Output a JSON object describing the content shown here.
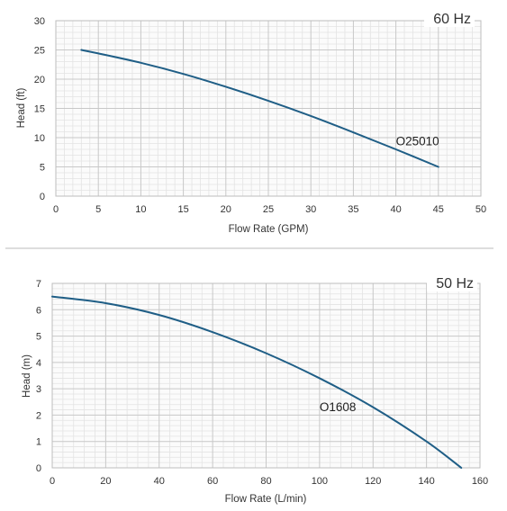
{
  "colors": {
    "curve": "#1f5e86",
    "grid_major": "#c8c8c8",
    "grid_minor": "#e3e3e3",
    "axis": "#bdbdbd",
    "panel_bg": "#fbfbfb",
    "divider": "#bbbbbb"
  },
  "chart_data": [
    {
      "type": "line",
      "title": "60 Hz",
      "xlabel": "Flow Rate (GPM)",
      "ylabel": "Head (ft)",
      "xlim": [
        0,
        50
      ],
      "ylim": [
        0,
        30
      ],
      "xticks": [
        0,
        5,
        10,
        15,
        20,
        25,
        30,
        35,
        40,
        45,
        50
      ],
      "yticks": [
        0,
        5,
        10,
        15,
        20,
        25,
        30
      ],
      "grid": true,
      "annotation": "O25010",
      "series": [
        {
          "x": [
            3,
            5,
            10,
            15,
            20,
            25,
            30,
            35,
            40,
            45
          ],
          "y": [
            25,
            24.4,
            22.8,
            20.9,
            18.7,
            16.3,
            13.7,
            10.9,
            8.0,
            5.0
          ]
        }
      ]
    },
    {
      "type": "line",
      "title": "50 Hz",
      "xlabel": "Flow Rate (L/min)",
      "ylabel": "Head (m)",
      "xlim": [
        0,
        160
      ],
      "ylim": [
        0,
        7
      ],
      "xticks": [
        0,
        20,
        40,
        60,
        80,
        100,
        120,
        140,
        160
      ],
      "yticks": [
        0,
        1,
        2,
        3,
        4,
        5,
        6,
        7
      ],
      "grid": true,
      "annotation": "O1608",
      "series": [
        {
          "x": [
            0,
            20,
            40,
            60,
            80,
            100,
            120,
            140,
            153
          ],
          "y": [
            6.5,
            6.25,
            5.8,
            5.15,
            4.35,
            3.4,
            2.3,
            1.0,
            0.0
          ]
        }
      ]
    }
  ]
}
